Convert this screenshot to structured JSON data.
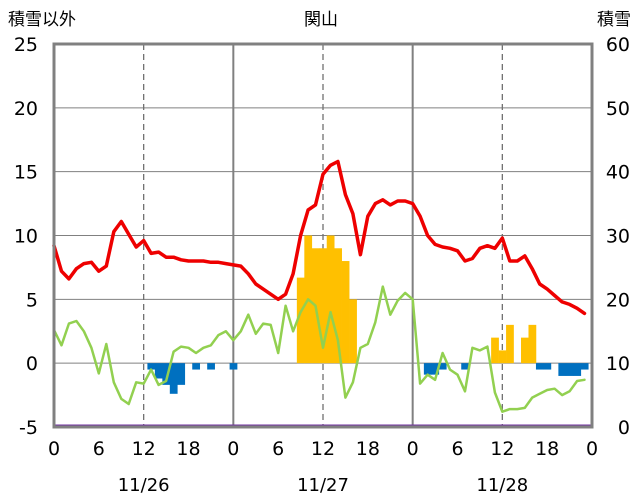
{
  "chart_data": {
    "type": "bar+line",
    "title": "関山",
    "left_axis_title": "積雪以外",
    "right_axis_title": "積雪",
    "x_ticks": [
      "0",
      "6",
      "12",
      "18",
      "0",
      "6",
      "12",
      "18",
      "0",
      "6",
      "12",
      "18",
      "0"
    ],
    "date_labels": [
      "11/26",
      "11/27",
      "11/28"
    ],
    "y_left": {
      "min": -5,
      "max": 25,
      "ticks": [
        "25",
        "20",
        "15",
        "10",
        "5",
        "0",
        "-5"
      ]
    },
    "y_right": {
      "min": 0,
      "max": 60,
      "ticks": [
        "60",
        "50",
        "40",
        "30",
        "20",
        "10",
        "0"
      ]
    },
    "grid": {
      "vertical_dashed_hours": [
        12,
        36,
        60
      ],
      "vertical_solid_hours": [
        24,
        48
      ]
    },
    "colors": {
      "temperature": "#ee0000",
      "green_line": "#92d050",
      "snowfall": "#ffc000",
      "snow_decrease": "#0070c0",
      "snow_depth": "#7030a0",
      "axis": "#808080"
    },
    "bars": [
      {
        "h": 13,
        "v": -0.5
      },
      {
        "h": 14,
        "v": -1.2
      },
      {
        "h": 15,
        "v": -1.7
      },
      {
        "h": 16,
        "v": -2.4
      },
      {
        "h": 17,
        "v": -1.7
      },
      {
        "h": 19,
        "v": -0.5
      },
      {
        "h": 21,
        "v": -0.5
      },
      {
        "h": 24,
        "v": -0.5
      },
      {
        "h": 33,
        "v": 6.7
      },
      {
        "h": 34,
        "v": 10
      },
      {
        "h": 35,
        "v": 9
      },
      {
        "h": 36,
        "v": 9
      },
      {
        "h": 37,
        "v": 10
      },
      {
        "h": 38,
        "v": 9
      },
      {
        "h": 39,
        "v": 8
      },
      {
        "h": 40,
        "v": 5
      },
      {
        "h": 50,
        "v": -0.9
      },
      {
        "h": 51,
        "v": -0.9
      },
      {
        "h": 52,
        "v": -0.5
      },
      {
        "h": 55,
        "v": -0.5
      },
      {
        "h": 59,
        "v": 2
      },
      {
        "h": 60,
        "v": 1
      },
      {
        "h": 61,
        "v": 3
      },
      {
        "h": 63,
        "v": 2
      },
      {
        "h": 64,
        "v": 3
      },
      {
        "h": 65,
        "v": -0.5
      },
      {
        "h": 66,
        "v": -0.5
      },
      {
        "h": 68,
        "v": -1
      },
      {
        "h": 69,
        "v": -1
      },
      {
        "h": 70,
        "v": -1
      },
      {
        "h": 71,
        "v": -0.5
      }
    ],
    "temperature": [
      [
        0,
        9.2
      ],
      [
        1,
        7.2
      ],
      [
        2,
        6.6
      ],
      [
        3,
        7.4
      ],
      [
        4,
        7.8
      ],
      [
        5,
        7.9
      ],
      [
        6,
        7.2
      ],
      [
        7,
        7.6
      ],
      [
        8,
        10.3
      ],
      [
        9,
        11.1
      ],
      [
        10,
        10.1
      ],
      [
        11,
        9.1
      ],
      [
        12,
        9.6
      ],
      [
        13,
        8.6
      ],
      [
        14,
        8.7
      ],
      [
        15,
        8.3
      ],
      [
        16,
        8.3
      ],
      [
        17,
        8.1
      ],
      [
        18,
        8
      ],
      [
        19,
        8
      ],
      [
        20,
        8
      ],
      [
        21,
        7.9
      ],
      [
        22,
        7.9
      ],
      [
        23,
        7.8
      ],
      [
        24,
        7.7
      ],
      [
        25,
        7.6
      ],
      [
        26,
        7
      ],
      [
        27,
        6.2
      ],
      [
        28,
        5.8
      ],
      [
        29,
        5.4
      ],
      [
        30,
        5
      ],
      [
        31,
        5.4
      ],
      [
        32,
        7
      ],
      [
        33,
        10
      ],
      [
        34,
        12
      ],
      [
        35,
        12.4
      ],
      [
        36,
        14.8
      ],
      [
        37,
        15.5
      ],
      [
        38,
        15.8
      ],
      [
        39,
        13.2
      ],
      [
        40,
        11.7
      ],
      [
        41,
        8.5
      ],
      [
        42,
        11.5
      ],
      [
        43,
        12.5
      ],
      [
        44,
        12.8
      ],
      [
        45,
        12.4
      ],
      [
        46,
        12.7
      ],
      [
        47,
        12.7
      ],
      [
        48,
        12.5
      ],
      [
        49,
        11.5
      ],
      [
        50,
        10
      ],
      [
        51,
        9.3
      ],
      [
        52,
        9.1
      ],
      [
        53,
        9
      ],
      [
        54,
        8.8
      ],
      [
        55,
        8
      ],
      [
        56,
        8.2
      ],
      [
        57,
        9
      ],
      [
        58,
        9.2
      ],
      [
        59,
        9
      ],
      [
        60,
        9.8
      ],
      [
        61,
        8
      ],
      [
        62,
        8
      ],
      [
        63,
        8.4
      ],
      [
        64,
        7.4
      ],
      [
        65,
        6.2
      ],
      [
        66,
        5.8
      ],
      [
        67,
        5.3
      ],
      [
        68,
        4.8
      ],
      [
        69,
        4.6
      ],
      [
        70,
        4.3
      ],
      [
        71,
        3.9
      ]
    ],
    "green_line": [
      [
        0,
        2.6
      ],
      [
        1,
        1.4
      ],
      [
        2,
        3.1
      ],
      [
        3,
        3.3
      ],
      [
        4,
        2.5
      ],
      [
        5,
        1.2
      ],
      [
        6,
        -0.8
      ],
      [
        7,
        1.5
      ],
      [
        8,
        -1.5
      ],
      [
        9,
        -2.8
      ],
      [
        10,
        -3.2
      ],
      [
        11,
        -1.5
      ],
      [
        12,
        -1.6
      ],
      [
        13,
        -0.5
      ],
      [
        14,
        -1.7
      ],
      [
        15,
        -1.4
      ],
      [
        16,
        0.9
      ],
      [
        17,
        1.3
      ],
      [
        18,
        1.2
      ],
      [
        19,
        0.8
      ],
      [
        20,
        1.2
      ],
      [
        21,
        1.4
      ],
      [
        22,
        2.2
      ],
      [
        23,
        2.5
      ],
      [
        24,
        1.8
      ],
      [
        25,
        2.5
      ],
      [
        26,
        3.8
      ],
      [
        27,
        2.3
      ],
      [
        28,
        3.1
      ],
      [
        29,
        3
      ],
      [
        30,
        0.8
      ],
      [
        31,
        4.5
      ],
      [
        32,
        2.5
      ],
      [
        33,
        4
      ],
      [
        34,
        5
      ],
      [
        35,
        4.5
      ],
      [
        36,
        1.2
      ],
      [
        37,
        4
      ],
      [
        38,
        1.8
      ],
      [
        39,
        -2.7
      ],
      [
        40,
        -1.5
      ],
      [
        41,
        1.2
      ],
      [
        42,
        1.5
      ],
      [
        43,
        3.2
      ],
      [
        44,
        6
      ],
      [
        45,
        3.8
      ],
      [
        46,
        4.9
      ],
      [
        47,
        5.5
      ],
      [
        48,
        5
      ],
      [
        49,
        -1.6
      ],
      [
        50,
        -0.9
      ],
      [
        51,
        -1.3
      ],
      [
        52,
        0.8
      ],
      [
        53,
        -0.5
      ],
      [
        54,
        -0.9
      ],
      [
        55,
        -2.2
      ],
      [
        56,
        1.2
      ],
      [
        57,
        1
      ],
      [
        58,
        1.3
      ],
      [
        59,
        -2.3
      ],
      [
        60,
        -3.8
      ],
      [
        61,
        -3.6
      ],
      [
        62,
        -3.6
      ],
      [
        63,
        -3.5
      ],
      [
        64,
        -2.7
      ],
      [
        65,
        -2.4
      ],
      [
        66,
        -2.1
      ],
      [
        67,
        -2
      ],
      [
        68,
        -2.5
      ],
      [
        69,
        -2.2
      ],
      [
        70,
        -1.4
      ],
      [
        71,
        -1.3
      ]
    ],
    "snow_depth": [
      [
        0,
        0
      ],
      [
        72,
        0
      ]
    ]
  }
}
